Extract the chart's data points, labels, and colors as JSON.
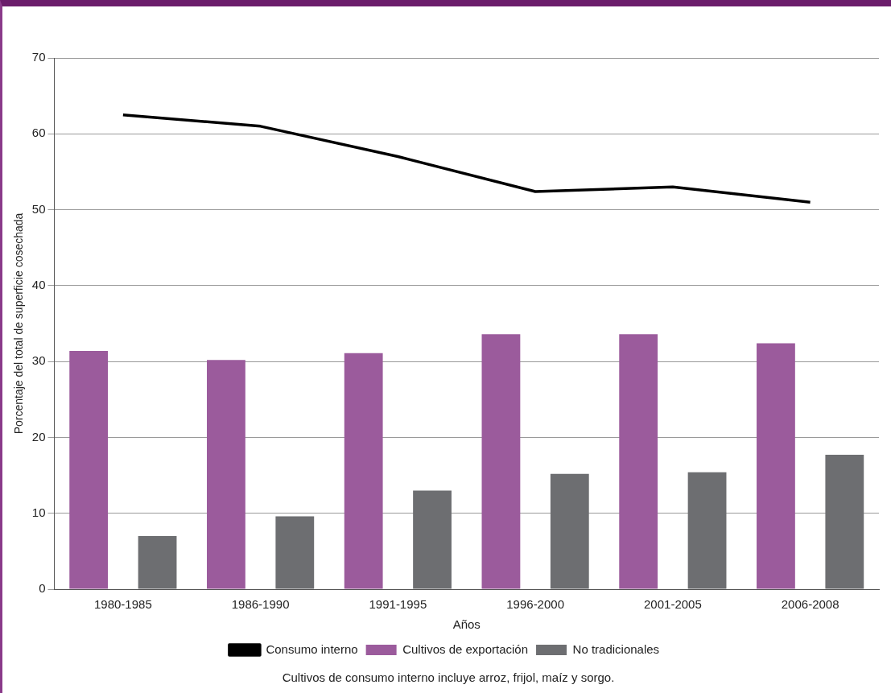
{
  "chart_data": {
    "type": "bar",
    "xlabel": "Años",
    "ylabel": "Porcentaje del total de superficie cosechada",
    "categories": [
      "1980-1985",
      "1986-1990",
      "1991-1995",
      "1996-2000",
      "2001-2005",
      "2006-2008"
    ],
    "series": [
      {
        "name": "Cultivos de exportación",
        "color": "#9b5b9c",
        "values": [
          31.4,
          30.2,
          31.1,
          33.6,
          33.6,
          32.4
        ]
      },
      {
        "name": "No tradicionales",
        "color": "#6d6e71",
        "values": [
          7.0,
          9.6,
          13.0,
          15.2,
          15.4,
          17.7
        ]
      },
      {
        "name": "Consumo interno",
        "type": "line",
        "color": "#000000",
        "values": [
          62.5,
          61.0,
          57.0,
          52.4,
          53.0,
          51.0
        ]
      }
    ],
    "ylim": [
      0,
      70
    ],
    "yticks": [
      0,
      10,
      20,
      30,
      40,
      50,
      60,
      70
    ],
    "grid": "y",
    "legend": "bottom",
    "marker": "none",
    "annotations": [
      "Cultivos de consumo interno incluye arroz, frijol, maíz y sorgo."
    ]
  }
}
